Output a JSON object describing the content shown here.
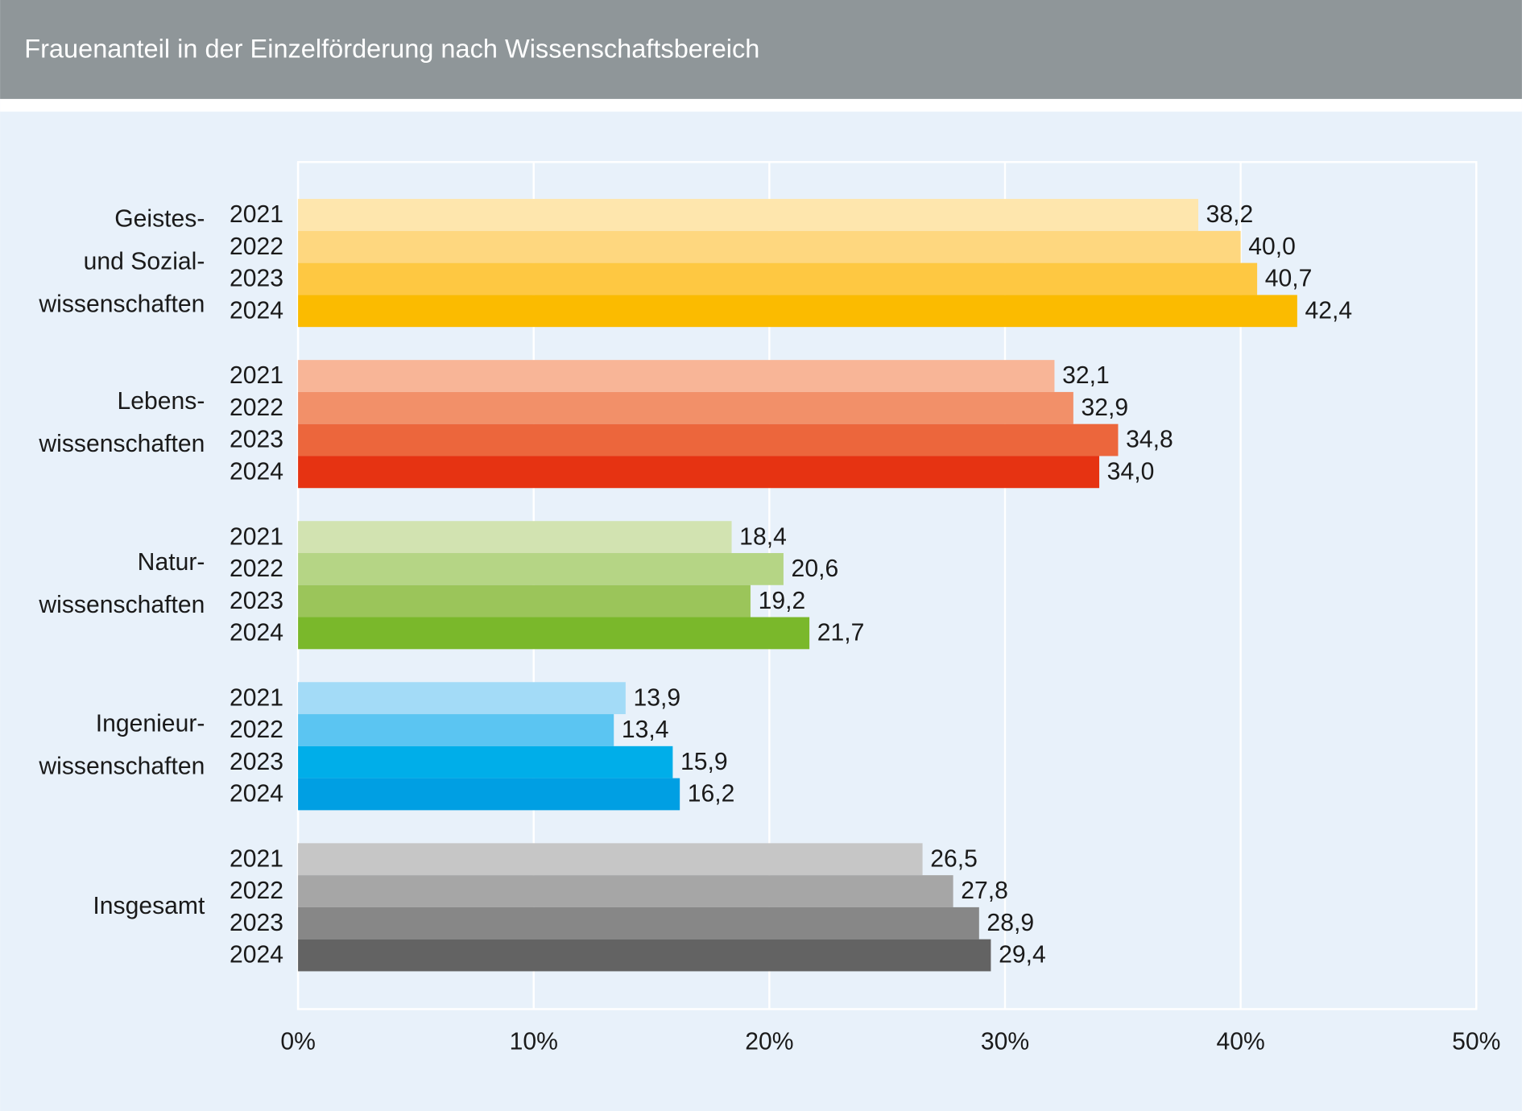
{
  "chart_data": {
    "type": "bar",
    "orientation": "horizontal",
    "title": "Frauenanteil in der Einzelförderung nach Wissenschaftsbereich",
    "years": [
      "2021",
      "2022",
      "2023",
      "2024"
    ],
    "groups": [
      {
        "label": [
          "Geistes-",
          "und Sozial-",
          "wissenschaften"
        ],
        "values": [
          38.2,
          40.0,
          40.7,
          42.4
        ],
        "value_labels": [
          "38,2",
          "40,0",
          "40,7",
          "42,4"
        ],
        "colors": [
          "#fee6ad",
          "#fed77f",
          "#fec842",
          "#fbbb00"
        ]
      },
      {
        "label": [
          "Lebens-",
          "wissenschaften"
        ],
        "values": [
          32.1,
          32.9,
          34.8,
          34.0
        ],
        "value_labels": [
          "32,1",
          "32,9",
          "34,8",
          "34,0"
        ],
        "colors": [
          "#f8b597",
          "#f29069",
          "#ec663c",
          "#e63312"
        ]
      },
      {
        "label": [
          "Natur-",
          "wissenschaften"
        ],
        "values": [
          18.4,
          20.6,
          19.2,
          21.7
        ],
        "value_labels": [
          "18,4",
          "20,6",
          "19,2",
          "21,7"
        ],
        "colors": [
          "#d2e3b1",
          "#b5d585",
          "#9bc55a",
          "#7ab82b"
        ]
      },
      {
        "label": [
          "Ingenieur-",
          "wissenschaften"
        ],
        "values": [
          13.9,
          13.4,
          15.9,
          16.2
        ],
        "value_labels": [
          "13,9",
          "13,4",
          "15,9",
          "16,2"
        ],
        "colors": [
          "#a3dbf7",
          "#5bc5f2",
          "#00aee9",
          "#009fe3"
        ]
      },
      {
        "label": [
          "Insgesamt"
        ],
        "values": [
          26.5,
          27.8,
          28.9,
          29.4
        ],
        "value_labels": [
          "26,5",
          "27,8",
          "28,9",
          "29,4"
        ],
        "colors": [
          "#c6c6c6",
          "#a6a6a6",
          "#878787",
          "#636363"
        ]
      }
    ],
    "xlim": [
      0,
      50
    ],
    "xticks": [
      {
        "value": 0,
        "label": "0%"
      },
      {
        "value": 10,
        "label": "10%"
      },
      {
        "value": 20,
        "label": "20%"
      },
      {
        "value": 30,
        "label": "30%"
      },
      {
        "value": 40,
        "label": "40%"
      },
      {
        "value": 50,
        "label": "50%"
      }
    ],
    "grid": true
  }
}
